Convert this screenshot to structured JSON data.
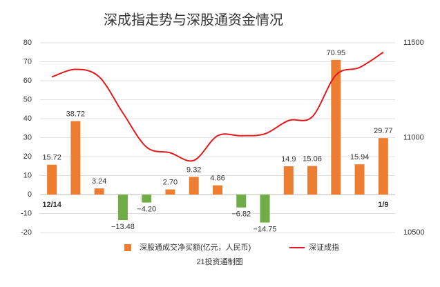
{
  "chart_data": {
    "type": "bar",
    "title": "深成指走势与深股通资金情况",
    "categories": [
      "12/14",
      null,
      null,
      null,
      null,
      null,
      null,
      null,
      null,
      null,
      null,
      null,
      null,
      null,
      "1/9"
    ],
    "series": [
      {
        "name": "深股通成交净买额(亿元，人民币)",
        "type": "bar",
        "color": "#ed7d31",
        "values": [
          15.72,
          38.72,
          3.24,
          -13.48,
          -4.2,
          2.7,
          9.32,
          4.86,
          -6.82,
          -14.75,
          14.9,
          15.06,
          70.95,
          15.94,
          29.77
        ],
        "value_labels": [
          "15.72",
          "38.72",
          "3.24",
          "−13.48",
          "−4.20",
          "2.70",
          "9.32",
          "4.86",
          "−6.82",
          "−14.75",
          "14.9",
          "15.06",
          "70.95",
          "15.94",
          "29.77"
        ]
      },
      {
        "name": "深证成指",
        "type": "line",
        "color": "#e31a1c",
        "axis": "y2",
        "values": [
          11320,
          11360,
          11320,
          11130,
          10950,
          10920,
          10880,
          11010,
          11010,
          11020,
          11090,
          11110,
          11330,
          11370,
          11450
        ]
      }
    ],
    "negative_color": "#70ad47",
    "ylim": [
      -20,
      80
    ],
    "yticks": [
      -20,
      -10,
      0,
      10,
      20,
      30,
      40,
      50,
      60,
      70,
      80
    ],
    "y2lim": [
      10500,
      11500
    ],
    "y2ticks": [
      10500,
      11000,
      11500
    ],
    "grid": true,
    "legend": "bottom",
    "source": "21投资通制图"
  }
}
